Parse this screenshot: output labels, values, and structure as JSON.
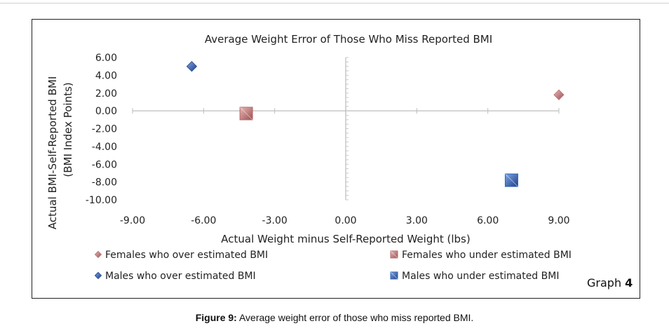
{
  "chart_data": {
    "type": "scatter",
    "title": "Average Weight Error of Those Who Miss Reported BMI",
    "xlabel": "Actual Weight minus Self-Reported Weight (lbs)",
    "ylabel_line1": "Actual BMI-Self-Reported BMI",
    "ylabel_line2": "(BMI Index Points)",
    "xlim": [
      -9,
      9
    ],
    "ylim": [
      -10,
      6
    ],
    "x_ticks": [
      "-9.00",
      "-6.00",
      "-3.00",
      "0.00",
      "3.00",
      "6.00",
      "9.00"
    ],
    "y_ticks": [
      "6.00",
      "4.00",
      "2.00",
      "0.00",
      "-2.00",
      "-4.00",
      "-6.00",
      "-8.00",
      "-10.00"
    ],
    "grid": false,
    "legend_position": "bottom",
    "series": [
      {
        "name": "Females who over estimated BMI",
        "marker": "diamond",
        "color": "#c07a7a",
        "points": [
          [
            9.0,
            1.8
          ]
        ]
      },
      {
        "name": "Females who under estimated BMI",
        "marker": "square",
        "color": "#b86a6a",
        "points": [
          [
            -4.2,
            -0.3
          ]
        ]
      },
      {
        "name": "Males who over estimated BMI",
        "marker": "diamond",
        "color": "#2d4f9a",
        "points": [
          [
            -6.5,
            5.0
          ]
        ]
      },
      {
        "name": "Males who under estimated BMI",
        "marker": "square",
        "color": "#2f63b8",
        "points": [
          [
            7.0,
            -7.8
          ]
        ]
      }
    ]
  },
  "graph_label": "Graph",
  "graph_number": "4",
  "caption": {
    "prefix": "Figure 9:",
    "text": " Average weight error of those who miss reported BMI."
  }
}
